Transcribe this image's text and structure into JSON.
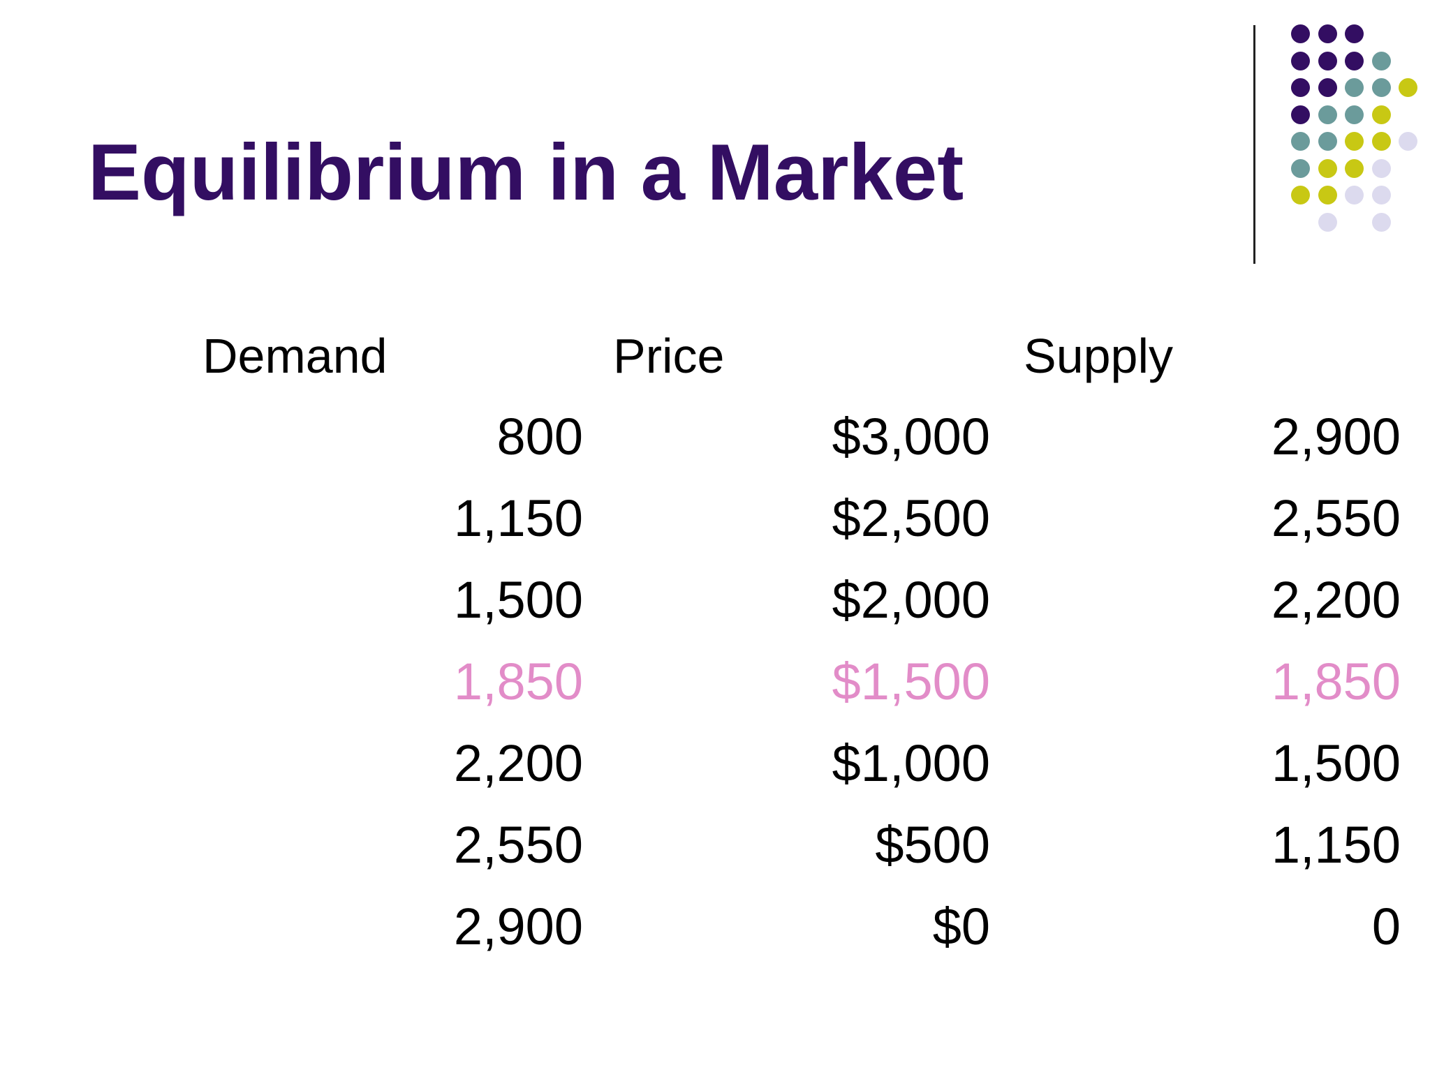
{
  "slide": {
    "title": "Equilibrium in a Market",
    "accent_color": "#330e62",
    "highlight_color": "#e28cc8"
  },
  "table": {
    "headers": {
      "demand": "Demand",
      "price": "Price",
      "supply": "Supply"
    },
    "rows": [
      {
        "demand": "800",
        "price": "$3,000",
        "supply": "2,900",
        "highlight": false
      },
      {
        "demand": "1,150",
        "price": "$2,500",
        "supply": "2,550",
        "highlight": false
      },
      {
        "demand": "1,500",
        "price": "$2,000",
        "supply": "2,200",
        "highlight": false
      },
      {
        "demand": "1,850",
        "price": "$1,500",
        "supply": "1,850",
        "highlight": true
      },
      {
        "demand": "2,200",
        "price": "$1,000",
        "supply": "1,500",
        "highlight": false
      },
      {
        "demand": "2,550",
        "price": "$500",
        "supply": "1,150",
        "highlight": false
      },
      {
        "demand": "2,900",
        "price": "$0",
        "supply": "0",
        "highlight": false
      }
    ]
  },
  "decoration": {
    "dot_colors": {
      "purple": "#330e62",
      "teal": "#6b9b9b",
      "olive": "#c8c814",
      "lavender": "#dcdaee"
    }
  }
}
